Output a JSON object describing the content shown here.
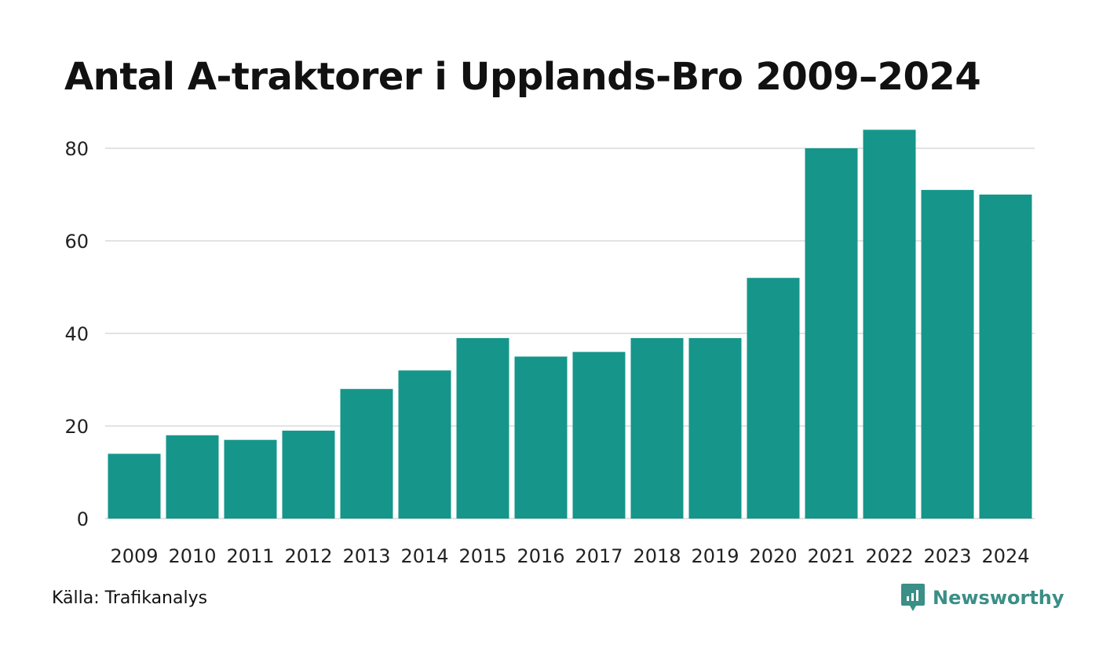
{
  "chart_data": {
    "type": "bar",
    "title": "Antal A-traktorer i Upplands-Bro 2009–2024",
    "xlabel": "",
    "ylabel": "",
    "categories": [
      "2009",
      "2010",
      "2011",
      "2012",
      "2013",
      "2014",
      "2015",
      "2016",
      "2017",
      "2018",
      "2019",
      "2020",
      "2021",
      "2022",
      "2023",
      "2024"
    ],
    "values": [
      14,
      18,
      17,
      19,
      28,
      32,
      39,
      35,
      36,
      39,
      39,
      52,
      80,
      84,
      71,
      70
    ],
    "ylim": [
      0,
      88
    ],
    "yticks": [
      0,
      20,
      40,
      60,
      80
    ],
    "grid": true,
    "bar_color": "#16968a",
    "grid_color": "#e3e3e3"
  },
  "footer": {
    "source": "Källa: Trafikanalys",
    "brand": "Newsworthy",
    "brand_color": "#3a8f86",
    "brand_icon": "newsworthy-logo-icon"
  }
}
